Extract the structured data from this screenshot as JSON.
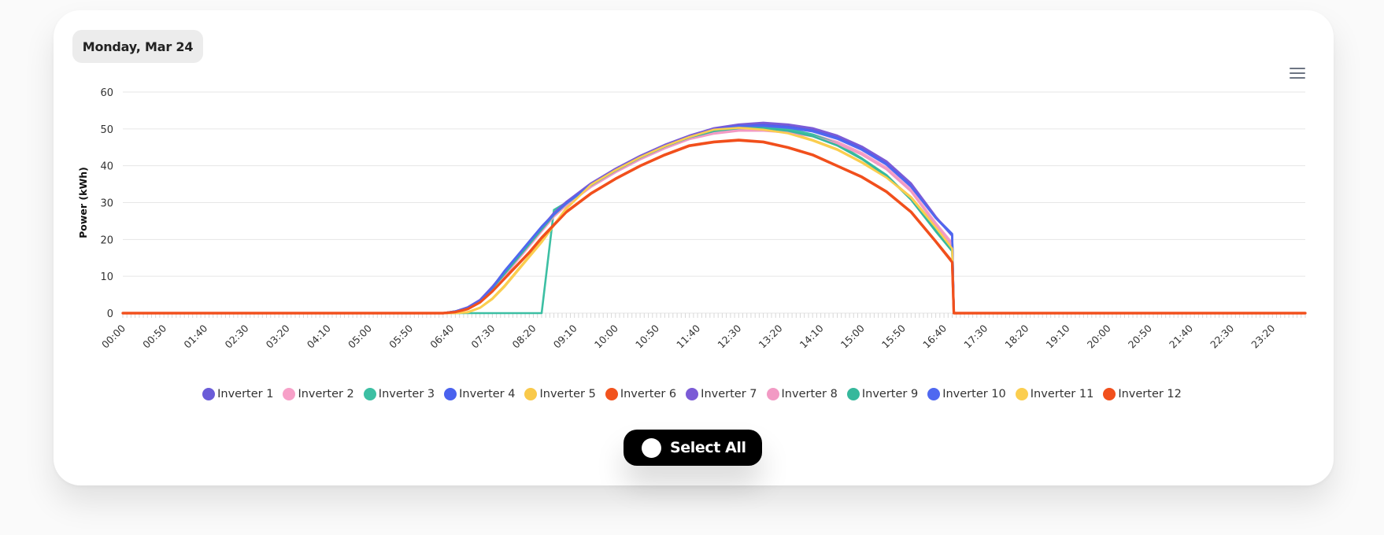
{
  "header": {
    "date_label": "Monday, Mar 24"
  },
  "controls": {
    "select_all_label": "Select All"
  },
  "icons": {
    "menu": "hamburger-menu-icon",
    "toggle": "toggle-circle-icon"
  },
  "chart_data": {
    "type": "line",
    "title": "",
    "xlabel": "",
    "ylabel": "Power (kWh)",
    "ylim": [
      0,
      60
    ],
    "yticks": [
      0,
      10,
      20,
      30,
      40,
      50,
      60
    ],
    "xlim": [
      "00:00",
      "24:00"
    ],
    "xticks": [
      "00:00",
      "00:50",
      "01:40",
      "02:30",
      "03:20",
      "04:10",
      "05:00",
      "05:50",
      "06:40",
      "07:30",
      "08:20",
      "09:10",
      "10:00",
      "10:50",
      "11:40",
      "12:30",
      "13:20",
      "14:10",
      "15:00",
      "15:50",
      "16:40",
      "17:30",
      "18:20",
      "19:10",
      "20:00",
      "20:50",
      "21:40",
      "22:30",
      "23:20"
    ],
    "grid": true,
    "legend_position": "bottom-center",
    "x": [
      "00:00",
      "06:30",
      "06:45",
      "07:00",
      "07:15",
      "07:30",
      "07:45",
      "08:00",
      "08:15",
      "08:30",
      "08:45",
      "09:00",
      "09:30",
      "10:00",
      "10:30",
      "11:00",
      "11:30",
      "12:00",
      "12:30",
      "13:00",
      "13:30",
      "14:00",
      "14:30",
      "15:00",
      "15:30",
      "16:00",
      "16:30",
      "16:50",
      "16:52",
      "17:00",
      "24:00"
    ],
    "series": [
      {
        "name": "Inverter 1",
        "color": "#6a5cd8",
        "values": [
          0,
          0,
          0.5,
          1.5,
          3.5,
          7,
          11,
          15,
          19,
          23,
          27,
          30,
          35,
          39,
          42.5,
          45.5,
          48,
          50,
          51,
          51.5,
          51,
          50,
          48,
          45,
          41,
          35,
          26,
          21,
          0,
          0,
          0
        ]
      },
      {
        "name": "Inverter 2",
        "color": "#f7a0c8",
        "values": [
          0,
          0,
          0.4,
          1.4,
          3.2,
          6.6,
          10.5,
          14.5,
          18.5,
          22.5,
          26.5,
          29.5,
          34.5,
          38.5,
          42,
          45,
          47.5,
          49,
          50,
          50,
          49.5,
          48.5,
          46.5,
          43.5,
          39.5,
          33.5,
          24.5,
          19,
          0,
          0,
          0
        ]
      },
      {
        "name": "Inverter 3",
        "color": "#3cbfa3",
        "values": [
          0,
          0,
          0,
          0,
          0,
          0,
          0,
          0,
          0,
          0,
          28,
          30,
          34.5,
          38.5,
          42,
          45,
          47.5,
          49.5,
          50.5,
          50.5,
          50,
          48.5,
          46,
          42,
          37.5,
          31,
          22.5,
          17,
          0,
          0,
          0
        ]
      },
      {
        "name": "Inverter 4",
        "color": "#4a62ee",
        "values": [
          0,
          0,
          0.5,
          1.5,
          3.5,
          7,
          11.5,
          15.5,
          19.5,
          23.5,
          27,
          30,
          35,
          39,
          42.5,
          45.5,
          48,
          50,
          51,
          51,
          50.5,
          49.5,
          47.5,
          44.5,
          40.5,
          34.5,
          26,
          21.5,
          0,
          0,
          0
        ]
      },
      {
        "name": "Inverter 5",
        "color": "#f9c94a",
        "values": [
          0,
          0,
          0,
          0.3,
          1.5,
          4,
          7.5,
          11.5,
          15.5,
          19.5,
          24,
          28.5,
          35,
          39,
          42.5,
          45.5,
          48,
          50,
          50.5,
          50,
          49,
          47,
          44.5,
          41,
          37,
          31.5,
          23.5,
          18,
          0,
          0,
          0
        ]
      },
      {
        "name": "Inverter 6",
        "color": "#f2531e",
        "values": [
          0,
          0,
          0.3,
          1.2,
          3,
          6,
          9.5,
          13,
          16.5,
          20.5,
          24,
          27.5,
          32.5,
          36.5,
          40,
          43,
          45.5,
          46.5,
          47,
          46.5,
          45,
          43,
          40,
          37,
          33,
          27.5,
          19.5,
          14,
          0,
          0,
          0
        ]
      },
      {
        "name": "Inverter 7",
        "color": "#7b5bd6",
        "values": [
          0,
          0,
          0.5,
          1.6,
          3.6,
          7.2,
          11.2,
          15.2,
          19.2,
          23.2,
          27.2,
          30.2,
          35.2,
          39.2,
          42.7,
          45.7,
          48.2,
          50.2,
          51.2,
          51.7,
          51.2,
          50.2,
          48.2,
          45.2,
          41.2,
          35.2,
          26.2,
          21,
          0,
          0,
          0
        ]
      },
      {
        "name": "Inverter 8",
        "color": "#f29ac4",
        "values": [
          0,
          0,
          0.4,
          1.3,
          3,
          6.4,
          10.2,
          14.2,
          18.2,
          22.2,
          26.2,
          29.2,
          34.2,
          38.2,
          41.7,
          44.7,
          47.2,
          48.7,
          49.5,
          49.5,
          49,
          48,
          46,
          43,
          39,
          33,
          24,
          18.5,
          0,
          0,
          0
        ]
      },
      {
        "name": "Inverter 9",
        "color": "#36b89c",
        "values": [
          0,
          0,
          0.4,
          1.4,
          3.3,
          6.7,
          10.7,
          14.7,
          18.7,
          22.7,
          26.7,
          29.7,
          34.7,
          38.7,
          42.2,
          45.2,
          47.7,
          49.4,
          50.2,
          50.2,
          49.5,
          48,
          45.5,
          41.8,
          37.3,
          30.8,
          22.2,
          16.8,
          0,
          0,
          0
        ]
      },
      {
        "name": "Inverter 10",
        "color": "#4f68f0",
        "values": [
          0,
          0,
          0.5,
          1.5,
          3.4,
          6.9,
          11.3,
          15.3,
          19.3,
          23.3,
          26.8,
          29.8,
          34.8,
          38.8,
          42.3,
          45.3,
          47.8,
          49.8,
          50.8,
          50.8,
          50.3,
          49.3,
          47.3,
          44.3,
          40.3,
          34.3,
          25.8,
          21.2,
          0,
          0,
          0
        ]
      },
      {
        "name": "Inverter 11",
        "color": "#fbce4f",
        "values": [
          0,
          0,
          0,
          0.2,
          1.4,
          3.8,
          7.2,
          11.2,
          15.2,
          19.2,
          23.8,
          28.3,
          34.8,
          38.8,
          42.3,
          45.3,
          47.8,
          49.8,
          50.3,
          49.8,
          48.8,
          46.8,
          44.3,
          40.8,
          36.8,
          31.3,
          23.3,
          17.5,
          0,
          0,
          0
        ]
      },
      {
        "name": "Inverter 12",
        "color": "#f14f1c",
        "values": [
          0,
          0,
          0.3,
          1.1,
          2.9,
          5.9,
          9.4,
          12.9,
          16.4,
          20.4,
          23.9,
          27.4,
          32.4,
          36.4,
          39.9,
          42.9,
          45.4,
          46.4,
          46.9,
          46.4,
          44.9,
          42.9,
          39.9,
          36.9,
          32.9,
          27.4,
          19.4,
          13.8,
          0,
          0,
          0
        ]
      }
    ]
  }
}
